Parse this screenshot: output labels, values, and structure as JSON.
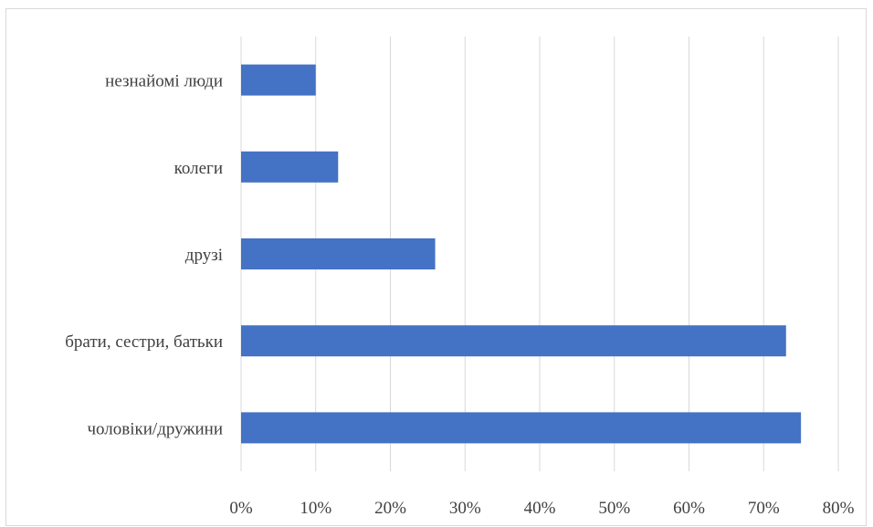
{
  "chart_data": {
    "type": "bar",
    "orientation": "horizontal",
    "categories": [
      "чоловіки/дружини",
      "брати, сестри, батьки",
      "друзі",
      "колеги",
      "незнайомі люди"
    ],
    "values": [
      75,
      73,
      26,
      13,
      10
    ],
    "value_unit": "%",
    "xlim": [
      0,
      80
    ],
    "xticks": [
      "0%",
      "10%",
      "20%",
      "30%",
      "40%",
      "50%",
      "60%",
      "70%",
      "80%"
    ],
    "grid": "vertical",
    "bar_color": "#4472c4",
    "title": "",
    "xlabel": "",
    "ylabel": ""
  }
}
